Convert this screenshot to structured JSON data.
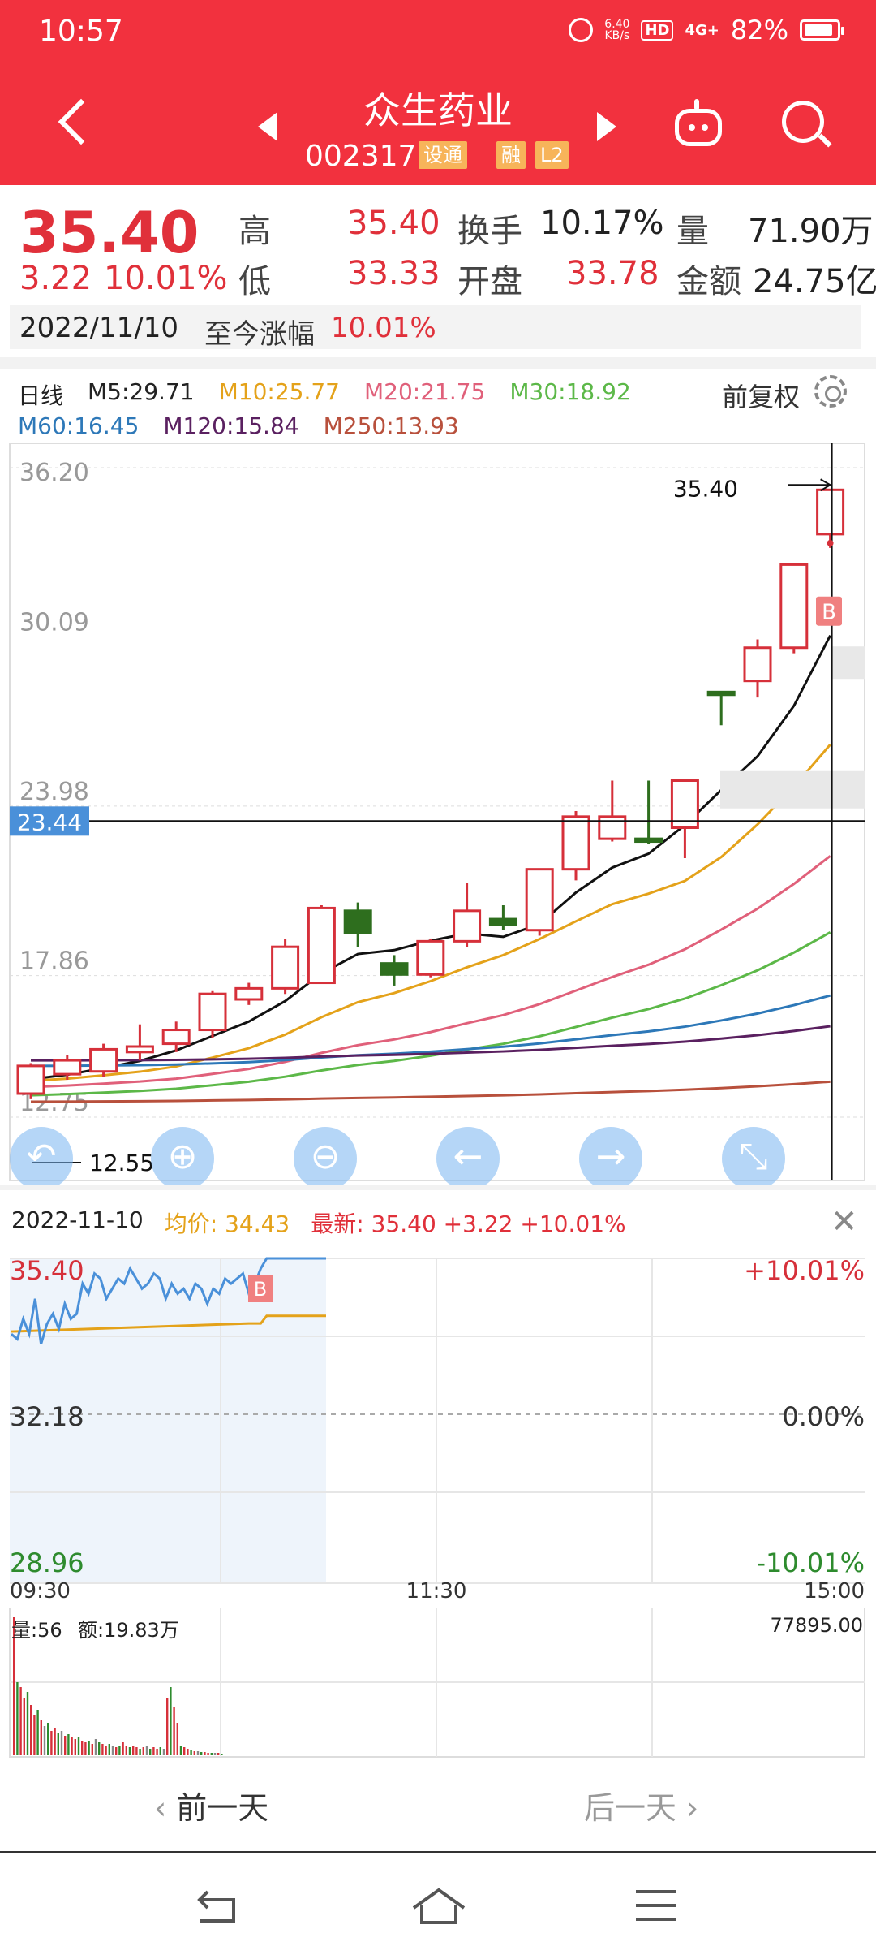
{
  "status": {
    "time": "10:57",
    "net_speed_top": "6.40",
    "net_speed_bottom": "KB/s",
    "hd": "HD",
    "signal": "4G+",
    "battery": "82%"
  },
  "header": {
    "name": "众生药业",
    "code": "002317",
    "tags": [
      "设通",
      "融",
      "L2"
    ]
  },
  "quote": {
    "price": "35.40",
    "change": "3.22",
    "change_pct": "10.01%",
    "high_label": "高",
    "high": "35.40",
    "low_label": "低",
    "low": "33.33",
    "turnover_label": "换手",
    "turnover": "10.17%",
    "open_label": "开盘",
    "open": "33.78",
    "volume_label": "量",
    "volume": "71.90万",
    "amount_label": "金额",
    "amount": "24.75亿",
    "date": "2022/11/10",
    "since_label": "至今涨幅",
    "since_pct": "10.01%"
  },
  "ma": {
    "period": "日线",
    "items_row1": [
      {
        "text": "M5:29.71",
        "color": "#222222"
      },
      {
        "text": "M10:25.77",
        "color": "#e4a21a"
      },
      {
        "text": "M20:21.75",
        "color": "#e0607a"
      },
      {
        "text": "M30:18.92",
        "color": "#5cb848"
      }
    ],
    "items_row2": [
      {
        "text": "M60:16.45",
        "color": "#2d78b8"
      },
      {
        "text": "M120:15.84",
        "color": "#5a2060"
      },
      {
        "text": "M250:13.93",
        "color": "#b8503c"
      }
    ],
    "fuquan": "前复权"
  },
  "kline_axis": {
    "top": "36.20",
    "mid1": "30.09",
    "mid2": "23.98",
    "mid3": "17.86",
    "bottom": "12.75",
    "crosshair": "23.44",
    "max_label": "35.40",
    "min_label": "12.55",
    "buy_marker": "B"
  },
  "kline_buttons": [
    "back-arrow",
    "zoom-in",
    "zoom-out",
    "left-arrow",
    "right-arrow",
    "expand"
  ],
  "intraday": {
    "date": "2022-11-10",
    "avg_label": "均价:",
    "avg": "34.43",
    "latest_label": "最新:",
    "latest": "35.40",
    "latest_change": "+3.22",
    "latest_pct": "+10.01%",
    "y_top": "35.40",
    "y_mid": "32.18",
    "y_bottom": "28.96",
    "pct_top": "+10.01%",
    "pct_mid": "0.00%",
    "pct_bottom": "-10.01%",
    "t_start": "09:30",
    "t_mid": "11:30",
    "t_end": "15:00",
    "buy_marker": "B"
  },
  "volume": {
    "vol_label": "量:56",
    "amt_label": "额:19.83万",
    "max": "77895.00"
  },
  "day_nav": {
    "prev": "前一天",
    "next": "后一天"
  },
  "candles": [
    {
      "o": 13.6,
      "c": 14.6,
      "h": 14.7,
      "l": 13.4
    },
    {
      "o": 14.3,
      "c": 14.8,
      "h": 15.0,
      "l": 14.1
    },
    {
      "o": 14.4,
      "c": 15.2,
      "h": 15.4,
      "l": 14.2
    },
    {
      "o": 15.1,
      "c": 15.3,
      "h": 16.1,
      "l": 14.8
    },
    {
      "o": 15.4,
      "c": 15.9,
      "h": 16.2,
      "l": 15.1
    },
    {
      "o": 15.9,
      "c": 17.2,
      "h": 17.3,
      "l": 15.6
    },
    {
      "o": 17.0,
      "c": 17.4,
      "h": 17.6,
      "l": 16.8
    },
    {
      "o": 17.4,
      "c": 18.9,
      "h": 19.2,
      "l": 17.2
    },
    {
      "o": 17.6,
      "c": 20.3,
      "h": 20.4,
      "l": 17.6
    },
    {
      "o": 20.2,
      "c": 19.4,
      "h": 20.5,
      "l": 18.9
    },
    {
      "o": 18.3,
      "c": 17.9,
      "h": 18.6,
      "l": 17.5
    },
    {
      "o": 17.9,
      "c": 19.1,
      "h": 19.2,
      "l": 17.8
    },
    {
      "o": 19.1,
      "c": 20.2,
      "h": 21.2,
      "l": 18.9
    },
    {
      "o": 19.9,
      "c": 19.7,
      "h": 20.4,
      "l": 19.5
    },
    {
      "o": 19.5,
      "c": 21.7,
      "h": 21.7,
      "l": 19.3
    },
    {
      "o": 21.7,
      "c": 23.6,
      "h": 23.8,
      "l": 21.3
    },
    {
      "o": 22.8,
      "c": 23.6,
      "h": 24.9,
      "l": 22.7
    },
    {
      "o": 22.8,
      "c": 22.7,
      "h": 24.9,
      "l": 22.6
    },
    {
      "o": 23.2,
      "c": 24.9,
      "h": 24.9,
      "l": 22.1
    },
    {
      "o": 28.1,
      "c": 28.0,
      "h": 28.1,
      "l": 26.9
    },
    {
      "o": 28.5,
      "c": 29.7,
      "h": 30.0,
      "l": 27.9
    },
    {
      "o": 29.7,
      "c": 32.7,
      "h": 32.7,
      "l": 29.5
    },
    {
      "o": 33.8,
      "c": 35.4,
      "h": 35.4,
      "l": 33.3
    }
  ],
  "colors": {
    "up": "#d6303a",
    "down": "#2e6e1e",
    "header": "#f2313e",
    "accent_blue": "#4a90d9"
  }
}
